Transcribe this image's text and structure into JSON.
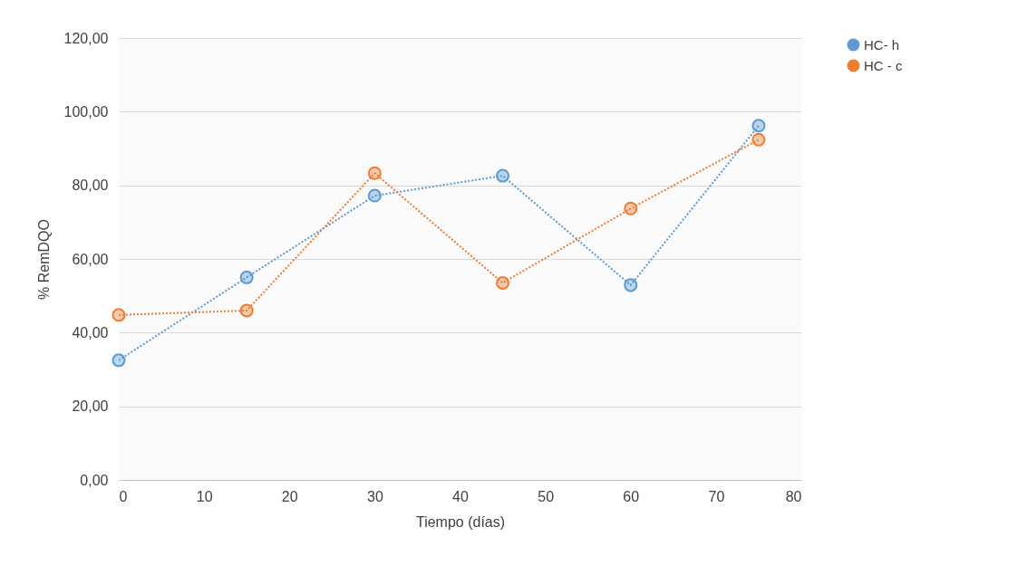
{
  "chart_data": {
    "type": "line",
    "xlabel": "Tiempo (días)",
    "ylabel": "% RemDQO",
    "x": [
      0,
      15,
      30,
      45,
      60,
      75
    ],
    "series": [
      {
        "name": "HC- h",
        "color": "#5b9bd5",
        "values": [
          32.5,
          55.0,
          77.2,
          82.6,
          52.9,
          96.2
        ]
      },
      {
        "name": "HC - c",
        "color": "#ed7d31",
        "values": [
          44.8,
          46.0,
          83.3,
          53.5,
          73.7,
          92.4
        ]
      }
    ],
    "xlim": [
      0,
      80
    ],
    "xticks": [
      0,
      10,
      20,
      30,
      40,
      50,
      60,
      70,
      80
    ],
    "ylim": [
      0,
      120
    ],
    "yticks": [
      {
        "value": 0,
        "label": "0,00"
      },
      {
        "value": 20,
        "label": "20,00"
      },
      {
        "value": 40,
        "label": "40,00"
      },
      {
        "value": 60,
        "label": "60,00"
      },
      {
        "value": 80,
        "label": "80,00"
      },
      {
        "value": 100,
        "label": "100,00"
      },
      {
        "value": 120,
        "label": "120,00"
      }
    ],
    "grid": "y",
    "legend": "right",
    "marker": "circle",
    "line_style": "dotted"
  }
}
